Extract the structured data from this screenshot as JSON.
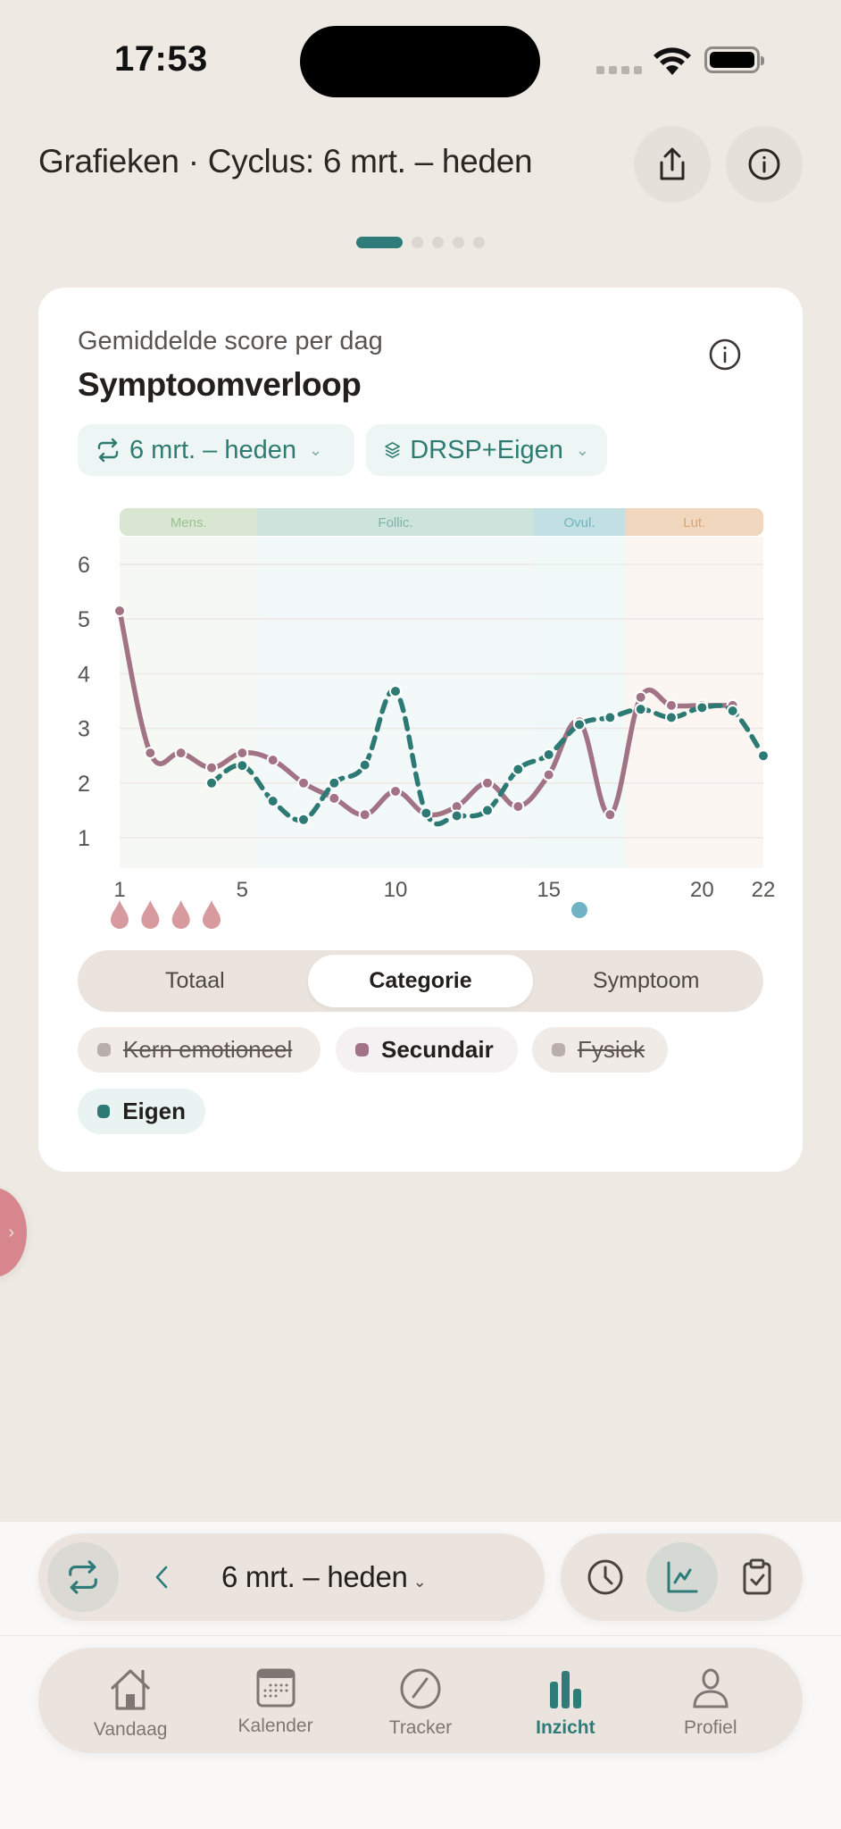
{
  "status_bar": {
    "time": "17:53"
  },
  "header": {
    "title": "Grafieken · Cyclus: 6 mrt. – heden",
    "share_icon": "share-icon",
    "info_icon": "info-icon"
  },
  "pager": {
    "count": 5,
    "active_index": 0
  },
  "card": {
    "subtitle": "Gemiddelde score per dag",
    "title": "Symptoomverloop",
    "range_chip": {
      "label": "6 mrt. – heden",
      "icon": "cycle-arrows-icon"
    },
    "layers_chip": {
      "label": "DRSP+Eigen",
      "icon": "layers-icon"
    },
    "segments": [
      {
        "label": "Totaal",
        "active": false
      },
      {
        "label": "Categorie",
        "active": true
      },
      {
        "label": "Symptoom",
        "active": false
      }
    ],
    "legend": [
      {
        "label": "Kern emotioneel",
        "enabled": false,
        "color": "#b8afac"
      },
      {
        "label": "Secundair",
        "enabled": true,
        "color": "#a17384"
      },
      {
        "label": "Fysiek",
        "enabled": false,
        "color": "#b8afac"
      },
      {
        "label": "Eigen",
        "enabled": true,
        "color": "#2c7a73"
      }
    ]
  },
  "chart_data": {
    "type": "line",
    "title": "Symptoomverloop",
    "subtitle": "Gemiddelde score per dag",
    "xlabel": "",
    "ylabel": "",
    "x": [
      1,
      2,
      3,
      4,
      5,
      6,
      7,
      8,
      9,
      10,
      11,
      12,
      13,
      14,
      15,
      16,
      17,
      18,
      19,
      20,
      21,
      22
    ],
    "x_ticks": [
      1,
      5,
      10,
      15,
      20,
      22
    ],
    "y_ticks": [
      1,
      2,
      3,
      4,
      5,
      6
    ],
    "ylim": [
      0.5,
      6.5
    ],
    "grid": true,
    "phases": [
      {
        "label": "Mens.",
        "start": 1,
        "end": 5.5,
        "band_color": "#d9e7d2",
        "text_color": "#9cc18f",
        "bg": "#f6f9f3"
      },
      {
        "label": "Follic.",
        "start": 5.5,
        "end": 14.5,
        "band_color": "#cde4dd",
        "text_color": "#7fb2a5",
        "bg": "#f3f9f8"
      },
      {
        "label": "Ovul.",
        "start": 14.5,
        "end": 17.5,
        "band_color": "#c2e0e3",
        "text_color": "#6fb3bb",
        "bg": "#f1f8f8"
      },
      {
        "label": "Lut.",
        "start": 17.5,
        "end": 22,
        "band_color": "#f0d7bd",
        "text_color": "#d9a46f",
        "bg": "#fcf6f2"
      }
    ],
    "series": [
      {
        "name": "Secundair",
        "color": "#a17384",
        "style": "solid",
        "values": [
          5.15,
          2.55,
          2.55,
          2.28,
          2.55,
          2.42,
          2.0,
          1.72,
          1.42,
          1.85,
          1.43,
          1.57,
          2.0,
          1.57,
          2.15,
          3.12,
          1.42,
          3.57,
          3.42,
          3.42,
          3.42,
          null
        ]
      },
      {
        "name": "Eigen",
        "color": "#2c7a73",
        "style": "dashed",
        "values": [
          null,
          null,
          null,
          2.0,
          2.32,
          1.67,
          1.33,
          2.0,
          2.33,
          3.68,
          1.45,
          1.4,
          1.5,
          2.25,
          2.52,
          3.07,
          3.2,
          3.35,
          3.2,
          3.38,
          3.32,
          2.5
        ]
      }
    ],
    "markers": {
      "period_days": [
        1,
        2,
        3,
        4
      ],
      "period_color": "#d79a9e",
      "ovulation_day": 16,
      "ovulation_color": "#6fb3c4"
    }
  },
  "edge_button": {
    "icon": "chevron-right-icon"
  },
  "range_bar": {
    "label": "6 mrt. – heden",
    "cycle_icon": "cycle-arrows-icon",
    "prev_icon": "chevron-left-icon"
  },
  "view_bar": {
    "buttons": [
      {
        "icon": "clock-icon",
        "active": false
      },
      {
        "icon": "line-chart-icon",
        "active": true
      },
      {
        "icon": "clipboard-check-icon",
        "active": false
      }
    ]
  },
  "tabbar": {
    "items": [
      {
        "label": "Vandaag",
        "icon": "home-icon",
        "active": false
      },
      {
        "label": "Kalender",
        "icon": "calendar-icon",
        "active": false
      },
      {
        "label": "Tracker",
        "icon": "pencil-circle-icon",
        "active": false
      },
      {
        "label": "Inzicht",
        "icon": "bar-chart-icon",
        "active": true
      },
      {
        "label": "Profiel",
        "icon": "person-icon",
        "active": false
      }
    ]
  },
  "chev": "⌄"
}
